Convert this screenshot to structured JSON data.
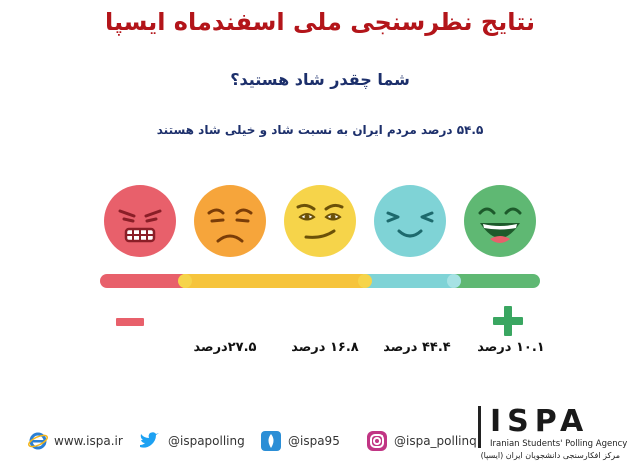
{
  "header": {
    "title": "نتایج نظرسنجی ملی اسفندماه ایسپا",
    "subtitle": "شما چقدر شاد هستید؟",
    "summary": "۵۴.۵ درصد مردم ایران به نسبت شاد و خیلی شاد هستند"
  },
  "faces": [
    {
      "icon": "angry-face-icon",
      "color": "#e8606b"
    },
    {
      "icon": "sad-face-icon",
      "color": "#f6a53b"
    },
    {
      "icon": "neutral-face-icon",
      "color": "#f6d44a"
    },
    {
      "icon": "happy-face-icon",
      "color": "#7fd3d6"
    },
    {
      "icon": "laughing-face-icon",
      "color": "#5fb873"
    }
  ],
  "scale": {
    "minus_symbol": "−",
    "plus_symbol": "+",
    "colors": [
      "#e8606b",
      "#f6c43c",
      "#f6d44a",
      "#7fd3d6",
      "#5fb873"
    ]
  },
  "percentages": [
    {
      "label": "۲۷.۵درصد",
      "value": 27.5
    },
    {
      "label": "۱۶.۸ درصد",
      "value": 16.8
    },
    {
      "label": "۴۴.۴ درصد",
      "value": 44.4
    },
    {
      "label": "۱۰.۱ درصد",
      "value": 10.1
    }
  ],
  "footer": {
    "website": "www.ispa.ir",
    "twitter": "@ispapolling",
    "other": "@ispa95",
    "instagram": "@ispa_pollinq",
    "logo": "ISPA",
    "logo_en": "Iranian Students' Polling Agency",
    "logo_fa": "مرکز افکارسنجی دانشجویان ایران (ایسپا)"
  }
}
